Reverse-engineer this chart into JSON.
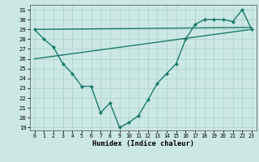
{
  "x": [
    0,
    1,
    2,
    3,
    4,
    5,
    6,
    7,
    8,
    9,
    10,
    11,
    12,
    13,
    14,
    15,
    16,
    17,
    18,
    19,
    20,
    21,
    22,
    23
  ],
  "y_data": [
    29,
    28,
    27.2,
    25.5,
    24.5,
    23.2,
    23.2,
    20.5,
    21.5,
    19,
    19.5,
    20.2,
    21.8,
    23.5,
    24.5,
    25.5,
    28,
    29.5,
    30,
    30,
    30,
    29.8,
    31,
    29
  ],
  "trend1_x": [
    0,
    23
  ],
  "trend1_y": [
    29.0,
    29.2
  ],
  "trend2_x": [
    0,
    23
  ],
  "trend2_y": [
    26.0,
    29.0
  ],
  "line_color": "#1a7a6e",
  "bg_color": "#cce8e4",
  "grid_color": "#afd4cf",
  "xlabel": "Humidex (Indice chaleur)",
  "ylim": [
    18.7,
    31.5
  ],
  "xlim": [
    -0.5,
    23.5
  ],
  "yticks": [
    19,
    20,
    21,
    22,
    23,
    24,
    25,
    26,
    27,
    28,
    29,
    30,
    31
  ],
  "xticks": [
    0,
    1,
    2,
    3,
    4,
    5,
    6,
    7,
    8,
    9,
    10,
    11,
    12,
    13,
    14,
    15,
    16,
    17,
    18,
    19,
    20,
    21,
    22,
    23
  ]
}
